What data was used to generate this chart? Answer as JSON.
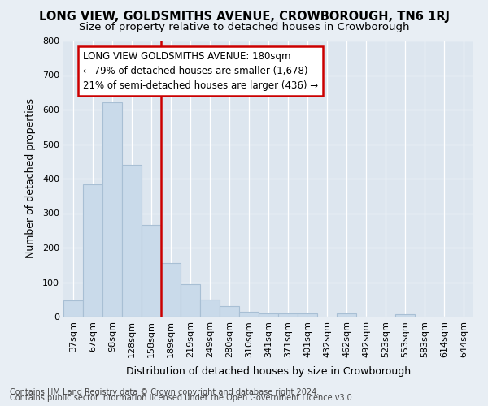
{
  "title": "LONG VIEW, GOLDSMITHS AVENUE, CROWBOROUGH, TN6 1RJ",
  "subtitle": "Size of property relative to detached houses in Crowborough",
  "xlabel": "Distribution of detached houses by size in Crowborough",
  "ylabel": "Number of detached properties",
  "footnote1": "Contains HM Land Registry data © Crown copyright and database right 2024.",
  "footnote2": "Contains public sector information licensed under the Open Government Licence v3.0.",
  "categories": [
    "37sqm",
    "67sqm",
    "98sqm",
    "128sqm",
    "158sqm",
    "189sqm",
    "219sqm",
    "249sqm",
    "280sqm",
    "310sqm",
    "341sqm",
    "371sqm",
    "401sqm",
    "432sqm",
    "462sqm",
    "492sqm",
    "523sqm",
    "553sqm",
    "583sqm",
    "614sqm",
    "644sqm"
  ],
  "values": [
    47,
    383,
    621,
    440,
    265,
    155,
    95,
    50,
    30,
    15,
    10,
    10,
    10,
    0,
    10,
    0,
    0,
    7,
    0,
    0,
    0
  ],
  "bar_color": "#c9daea",
  "bar_edge_color": "#a8bfd4",
  "vline_index": 5,
  "vline_color": "#cc0000",
  "annotation_line1": "LONG VIEW GOLDSMITHS AVENUE: 180sqm",
  "annotation_line2": "← 79% of detached houses are smaller (1,678)",
  "annotation_line3": "21% of semi-detached houses are larger (436) →",
  "annotation_box_color": "white",
  "annotation_box_edge": "#cc0000",
  "ylim": [
    0,
    800
  ],
  "yticks": [
    0,
    100,
    200,
    300,
    400,
    500,
    600,
    700,
    800
  ],
  "bg_color": "#e8eef4",
  "plot_bg_color": "#dde6ef",
  "title_fontsize": 10.5,
  "subtitle_fontsize": 9.5,
  "ylabel_fontsize": 9,
  "xlabel_fontsize": 9,
  "tick_fontsize": 8,
  "footnote_fontsize": 7,
  "annotation_fontsize": 8.5
}
